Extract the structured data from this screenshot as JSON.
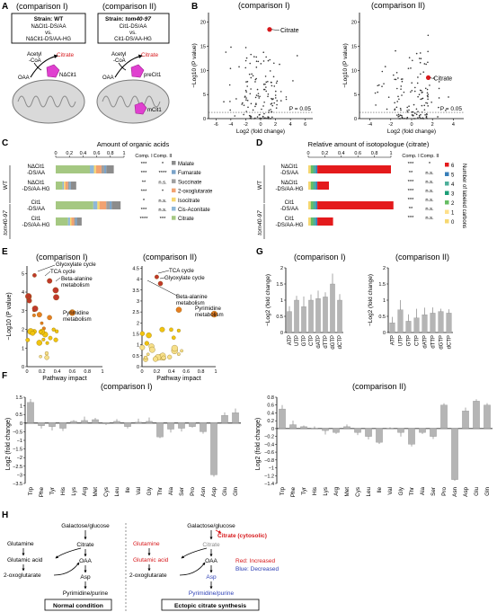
{
  "panel_labels": {
    "A": "A",
    "B": "B",
    "C": "C",
    "D": "D",
    "E": "E",
    "F": "F",
    "G": "G",
    "H": "H"
  },
  "comp1": "(comparison I)",
  "comp2": "(comparison II)",
  "panelA": {
    "box1_strain": "Strain: WT",
    "box1_l1": "NΔCit1-DS/AA",
    "box1_l2": "vs.",
    "box1_l3": "NΔCit1-DS/AA-HG",
    "box2_strain_prefix": "Strain: ",
    "box2_strain_name": "tom40-97",
    "box2_l1": "Cit1-DS/AA",
    "box2_l2": "vs.",
    "box2_l3": "Cit1-DS/AA-HG",
    "acetyl": "Acetyl",
    "coa": "-CoA",
    "citrate": "Citrate",
    "oaa": "OAA",
    "enzyme1": "NΔCit1",
    "enzyme2": "preCit1",
    "enzyme3": "mCit1"
  },
  "panelB": {
    "ylabel": "−Log10 (P value)",
    "xlabel": "Log2 (fold change)",
    "pline": "P = 0.05",
    "citrate": "Citrate",
    "ticks1_x": [
      "-6",
      "-4",
      "-2",
      "0",
      "2",
      "4",
      "6"
    ],
    "ticks1_y": [
      "0",
      "5",
      "10",
      "15",
      "20"
    ],
    "ticks2_x": [
      "-4",
      "-2",
      "0",
      "2",
      "4"
    ],
    "ticks2_y": [
      "0",
      "5",
      "10",
      "15",
      "20"
    ]
  },
  "panelC": {
    "title": "Amount of organic acids",
    "ticks": [
      "0",
      "0.2",
      "0.4",
      "0.6",
      "0.8",
      "1"
    ],
    "comp_hdr": [
      "Comp. I",
      "Comp. II"
    ],
    "group1": "WT",
    "group2": "tom40-97",
    "rows": [
      {
        "l1": "NΔCit1",
        "l2": "-DS/AA"
      },
      {
        "l1": "NΔCit1",
        "l2": "-DS/AA-HG"
      },
      {
        "l1": "Cit1",
        "l2": "-DS/AA"
      },
      {
        "l1": "Cit1",
        "l2": "-DS/AA-HG"
      }
    ],
    "legend": [
      {
        "name": "Malate",
        "c1": "***",
        "c2": "*",
        "color": "#8c8c8c"
      },
      {
        "name": "Fumarate",
        "c1": "***",
        "c2": "****",
        "color": "#7aa3c9"
      },
      {
        "name": "Succinate",
        "c1": "**",
        "c2": "n.s.",
        "color": "#9e9e9e"
      },
      {
        "name": "2-oxoglutarate",
        "c1": "***",
        "c2": "*",
        "color": "#f2a271"
      },
      {
        "name": "Isocitrate",
        "c1": "*",
        "c2": "n.s.",
        "color": "#f6d770"
      },
      {
        "name": "Cis-Aconitate",
        "c1": "***",
        "c2": "n.s.",
        "color": "#8fb8d8"
      },
      {
        "name": "Citrate",
        "c1": "****",
        "c2": "***",
        "color": "#a5c882"
      }
    ],
    "bars": [
      [
        {
          "k": "Citrate",
          "v": 0.5
        },
        {
          "k": "Cis-Aconitate",
          "v": 0.06
        },
        {
          "k": "Isocitrate",
          "v": 0.03
        },
        {
          "k": "2-oxoglutarate",
          "v": 0.08
        },
        {
          "k": "Succinate",
          "v": 0.04
        },
        {
          "k": "Fumarate",
          "v": 0.03
        },
        {
          "k": "Malate",
          "v": 0.11
        }
      ],
      [
        {
          "k": "Citrate",
          "v": 0.1
        },
        {
          "k": "Cis-Aconitate",
          "v": 0.02
        },
        {
          "k": "Isocitrate",
          "v": 0.02
        },
        {
          "k": "2-oxoglutarate",
          "v": 0.04
        },
        {
          "k": "Succinate",
          "v": 0.02
        },
        {
          "k": "Fumarate",
          "v": 0.02
        },
        {
          "k": "Malate",
          "v": 0.08
        }
      ],
      [
        {
          "k": "Citrate",
          "v": 0.55
        },
        {
          "k": "Cis-Aconitate",
          "v": 0.06
        },
        {
          "k": "Isocitrate",
          "v": 0.03
        },
        {
          "k": "2-oxoglutarate",
          "v": 0.1
        },
        {
          "k": "Succinate",
          "v": 0.05
        },
        {
          "k": "Fumarate",
          "v": 0.03
        },
        {
          "k": "Malate",
          "v": 0.13
        }
      ],
      [
        {
          "k": "Citrate",
          "v": 0.18
        },
        {
          "k": "Cis-Aconitate",
          "v": 0.03
        },
        {
          "k": "Isocitrate",
          "v": 0.02
        },
        {
          "k": "2-oxoglutarate",
          "v": 0.04
        },
        {
          "k": "Succinate",
          "v": 0.02
        },
        {
          "k": "Fumarate",
          "v": 0.02
        },
        {
          "k": "Malate",
          "v": 0.07
        }
      ]
    ]
  },
  "panelD": {
    "title": "Relative amount of isotopologue (citrate)",
    "ticks": [
      "0",
      "0.2",
      "0.4",
      "0.6",
      "0.8",
      "1"
    ],
    "comp_hdr": [
      "Comp. I",
      "Comp. II"
    ],
    "group1": "WT",
    "group2": "tom40-97",
    "rows": [
      {
        "l1": "NΔCit1",
        "l2": "-DS/AA",
        "c1": "***",
        "c2": "*"
      },
      {
        "l1": "NΔCit1",
        "l2": "-DS/AA-HG",
        "c1": "**",
        "c2": "n.s."
      },
      {
        "l1": "Cit1",
        "l2": "-DS/AA",
        "c1": "***",
        "c2": "n.s."
      },
      {
        "l1": "Cit1",
        "l2": "-DS/AA-HG",
        "c1": "**",
        "c2": "n.s."
      }
    ],
    "row_sig_extra": [
      [
        "***",
        "n.s."
      ],
      [
        "***",
        "n.s."
      ],
      [
        "***",
        "n.s."
      ]
    ],
    "legend_title": "Number of labeled carbons",
    "legend": [
      {
        "name": "6",
        "color": "#e41a1c"
      },
      {
        "name": "5",
        "color": "#377eb8"
      },
      {
        "name": "4",
        "color": "#4daf9a"
      },
      {
        "name": "3",
        "color": "#1b9e77"
      },
      {
        "name": "2",
        "color": "#66bd63"
      },
      {
        "name": "1",
        "color": "#fee08b"
      },
      {
        "name": "0",
        "color": "#f6d770"
      }
    ],
    "bars": [
      [
        {
          "k": "0",
          "v": 0.03
        },
        {
          "k": "2",
          "v": 0.03
        },
        {
          "k": "4",
          "v": 0.03
        },
        {
          "k": "5",
          "v": 0.02
        },
        {
          "k": "6",
          "v": 0.89
        }
      ],
      [
        {
          "k": "0",
          "v": 0.03
        },
        {
          "k": "2",
          "v": 0.03
        },
        {
          "k": "4",
          "v": 0.03
        },
        {
          "k": "5",
          "v": 0.02
        },
        {
          "k": "6",
          "v": 0.14
        }
      ],
      [
        {
          "k": "0",
          "v": 0.03
        },
        {
          "k": "2",
          "v": 0.03
        },
        {
          "k": "4",
          "v": 0.03
        },
        {
          "k": "5",
          "v": 0.02
        },
        {
          "k": "6",
          "v": 0.92
        }
      ],
      [
        {
          "k": "0",
          "v": 0.03
        },
        {
          "k": "2",
          "v": 0.03
        },
        {
          "k": "4",
          "v": 0.03
        },
        {
          "k": "5",
          "v": 0.02
        },
        {
          "k": "6",
          "v": 0.19
        }
      ]
    ]
  },
  "panelE": {
    "ylabel": "−Log10 (P value)",
    "xlabel": "Pathway impact",
    "ticks_x": [
      "0",
      "0.2",
      "0.4",
      "0.6",
      "0.8",
      "1"
    ],
    "ticks_y": [
      "0",
      "1",
      "2",
      "3",
      "4",
      "5"
    ],
    "ticks2_y": [
      "0",
      "0.5",
      "1",
      "1.5",
      "2",
      "2.5",
      "3",
      "3.5",
      "4",
      "4.5"
    ],
    "left_labels": [
      "Glyoxylate cycle",
      "TCA cycle",
      "Beta-alanine",
      "metabolism",
      "Pyrimidine",
      "metabolism"
    ],
    "right_labels": [
      "TCA cycle",
      "Glyoxylate cycle",
      "Beta-alanine",
      "metabolism",
      "Pyrimidine",
      "metabolism"
    ]
  },
  "panelF": {
    "ylabel": "Log2 (fold change)",
    "amino_acids": [
      "Trp",
      "Phe",
      "Tyr",
      "His",
      "Lys",
      "Arg",
      "Met",
      "Cys",
      "Leu",
      "Ile",
      "Val",
      "Gly",
      "Thr",
      "Ala",
      "Ser",
      "Pro",
      "Asn",
      "Asp",
      "Glu",
      "Gln"
    ],
    "values1": [
      1.2,
      -0.15,
      -0.2,
      -0.3,
      0.1,
      0.15,
      0.2,
      -0.05,
      0.1,
      -0.2,
      0.05,
      0.1,
      -0.8,
      -0.35,
      -0.3,
      -0.2,
      -0.5,
      -3.0,
      0.45,
      0.6
    ],
    "values2": [
      0.5,
      0.1,
      0.05,
      0.0,
      -0.05,
      -0.1,
      0.05,
      -0.1,
      -0.2,
      -0.35,
      0.0,
      -0.1,
      -0.4,
      -0.1,
      -0.2,
      0.6,
      -1.3,
      0.45,
      0.7,
      0.6
    ],
    "ticks1_y": [
      "1.5",
      "1",
      "0.5",
      "0",
      "−0.5",
      "−1",
      "−1.5",
      "−2",
      "−2.5",
      "−3",
      "−3.5"
    ],
    "ticks2_y": [
      "0.8",
      "0.6",
      "0.4",
      "0.2",
      "0",
      "−0.2",
      "−0.4",
      "−0.6",
      "−0.8",
      "−1",
      "−1.2",
      "−1.4"
    ]
  },
  "panelG": {
    "ylabel": "−Log2 (fold change)",
    "nucleotides": [
      "ATP",
      "UTP",
      "GTP",
      "CTP",
      "dATP",
      "dTTP",
      "dGTP",
      "dCTP"
    ],
    "values1": [
      0.65,
      1.0,
      0.8,
      1.0,
      1.05,
      1.1,
      1.5,
      1.0
    ],
    "values2": [
      0.3,
      0.7,
      0.35,
      0.45,
      0.55,
      0.6,
      0.65,
      0.6
    ],
    "ticks_y": [
      "0",
      "0.5",
      "1",
      "1.5",
      "2"
    ]
  },
  "panelH": {
    "left_title": "Normal condition",
    "right_title": "Ectopic citrate synthesis",
    "gal": "Galactose/glucose",
    "citrate": "Citrate",
    "citrate_cyto": "Citrate (cytosolic)",
    "glutamine": "Glutamine",
    "glutamic": "Glutamic acid",
    "oxo": "2-oxoglutarate",
    "oaa": "OAA",
    "asp": "Asp",
    "pyr": "Pyrimidine/purine",
    "key_red": "Red: Increased",
    "key_blue": "Blue: Decreased"
  },
  "colors": {
    "red": "#d7191c",
    "blue": "#2c3fb5",
    "bar": "#b5b5b5",
    "magenta": "#e040d0",
    "grey": "#8a8a8a"
  }
}
